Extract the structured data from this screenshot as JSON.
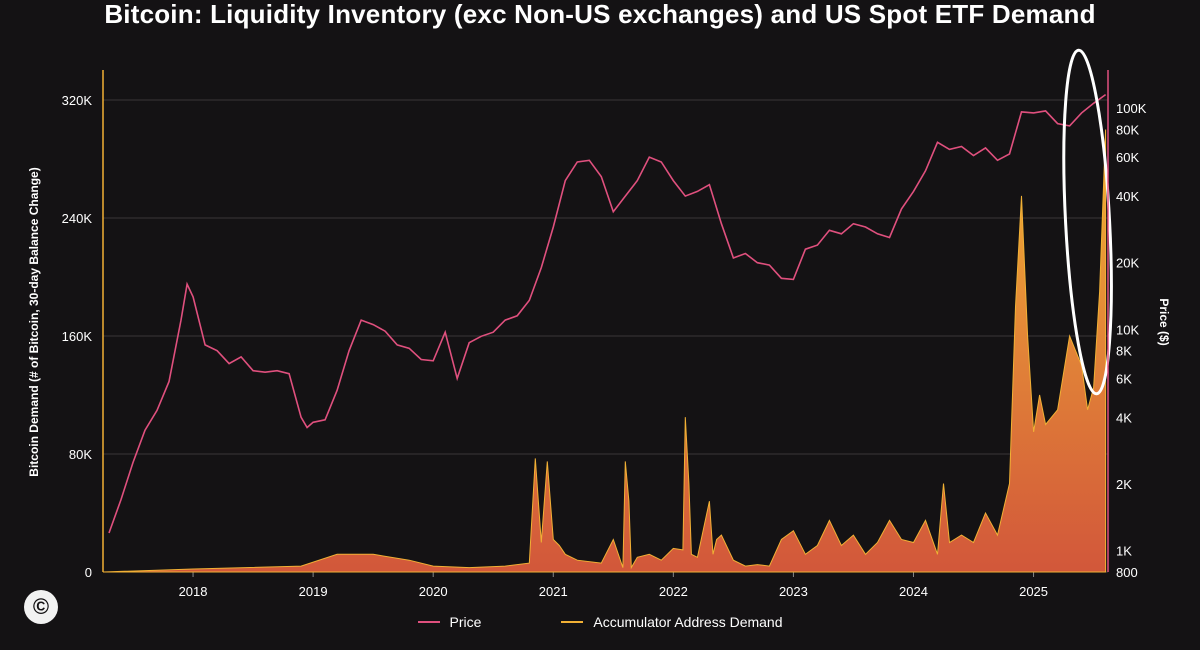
{
  "chart_data": {
    "type": "line",
    "title": "Bitcoin: Liquidity Inventory (exc Non-US exchanges) and US Spot ETF Demand",
    "ylabel_left": "Bitcoin Demand (# of Bitcoin, 30-day Balance Change)",
    "ylabel_right": "Price ($)",
    "left_axis": {
      "min": 0,
      "max": 320000,
      "ticks": [
        0,
        80000,
        160000,
        240000,
        320000
      ],
      "tick_labels": [
        "0",
        "80K",
        "160K",
        "240K",
        "320K"
      ]
    },
    "right_axis": {
      "scale": "log",
      "min": 800,
      "max": 100000,
      "ticks": [
        800,
        1000,
        2000,
        4000,
        6000,
        8000,
        10000,
        20000,
        40000,
        60000,
        80000,
        100000
      ],
      "tick_labels": [
        "800",
        "1K",
        "2K",
        "4K",
        "6K",
        "8K",
        "10K",
        "20K",
        "40K",
        "60K",
        "80K",
        "100K"
      ]
    },
    "x_axis": {
      "min": 2017.25,
      "max": 2025.62,
      "ticks": [
        2018,
        2019,
        2020,
        2021,
        2022,
        2023,
        2024,
        2025
      ],
      "tick_labels": [
        "2018",
        "2019",
        "2020",
        "2021",
        "2022",
        "2023",
        "2024",
        "2025"
      ]
    },
    "grid": "horizontal",
    "legend_position": "bottom-center",
    "series": [
      {
        "name": "Price",
        "axis": "right",
        "color": "#e0507e",
        "x": [
          2017.3,
          2017.4,
          2017.5,
          2017.6,
          2017.7,
          2017.8,
          2017.9,
          2017.95,
          2018.0,
          2018.1,
          2018.2,
          2018.3,
          2018.4,
          2018.5,
          2018.6,
          2018.7,
          2018.8,
          2018.9,
          2018.95,
          2019.0,
          2019.1,
          2019.2,
          2019.3,
          2019.4,
          2019.5,
          2019.6,
          2019.7,
          2019.8,
          2019.9,
          2020.0,
          2020.1,
          2020.2,
          2020.3,
          2020.4,
          2020.5,
          2020.6,
          2020.7,
          2020.8,
          2020.9,
          2021.0,
          2021.1,
          2021.2,
          2021.3,
          2021.4,
          2021.5,
          2021.6,
          2021.7,
          2021.8,
          2021.9,
          2022.0,
          2022.1,
          2022.2,
          2022.3,
          2022.4,
          2022.5,
          2022.6,
          2022.7,
          2022.8,
          2022.9,
          2023.0,
          2023.1,
          2023.2,
          2023.3,
          2023.4,
          2023.5,
          2023.6,
          2023.7,
          2023.8,
          2023.9,
          2024.0,
          2024.1,
          2024.2,
          2024.3,
          2024.4,
          2024.5,
          2024.6,
          2024.7,
          2024.8,
          2024.9,
          2025.0,
          2025.1,
          2025.2,
          2025.3,
          2025.4,
          2025.5,
          2025.6
        ],
        "y": [
          1200,
          1700,
          2500,
          3500,
          4300,
          5800,
          11000,
          16000,
          14000,
          8500,
          8000,
          7000,
          7500,
          6500,
          6400,
          6500,
          6300,
          4000,
          3600,
          3800,
          3900,
          5300,
          8000,
          11000,
          10500,
          9800,
          8500,
          8200,
          7300,
          7200,
          9700,
          6000,
          8700,
          9300,
          9700,
          11000,
          11500,
          13500,
          19000,
          29000,
          47000,
          57000,
          58000,
          49000,
          34000,
          40000,
          47000,
          60000,
          57000,
          47000,
          40000,
          42000,
          45000,
          30000,
          21000,
          22000,
          20000,
          19500,
          17000,
          16800,
          23000,
          24000,
          28000,
          27000,
          30000,
          29000,
          27000,
          26000,
          35000,
          42000,
          52000,
          70000,
          65000,
          67000,
          61000,
          66000,
          58000,
          62000,
          96000,
          95000,
          97000,
          85000,
          83000,
          95000,
          105000,
          115000
        ]
      },
      {
        "name": "Accumulator Address Demand",
        "axis": "left",
        "color": "#f1b035",
        "x": [
          2017.25,
          2018.0,
          2018.9,
          2019.2,
          2019.5,
          2019.8,
          2020.0,
          2020.3,
          2020.6,
          2020.8,
          2020.85,
          2020.9,
          2020.95,
          2021.0,
          2021.05,
          2021.1,
          2021.2,
          2021.4,
          2021.5,
          2021.58,
          2021.6,
          2021.63,
          2021.65,
          2021.7,
          2021.8,
          2021.9,
          2022.0,
          2022.08,
          2022.1,
          2022.13,
          2022.15,
          2022.2,
          2022.3,
          2022.33,
          2022.36,
          2022.4,
          2022.5,
          2022.6,
          2022.7,
          2022.8,
          2022.9,
          2023.0,
          2023.1,
          2023.2,
          2023.3,
          2023.4,
          2023.5,
          2023.6,
          2023.7,
          2023.8,
          2023.9,
          2024.0,
          2024.1,
          2024.2,
          2024.25,
          2024.3,
          2024.4,
          2024.5,
          2024.6,
          2024.7,
          2024.8,
          2024.85,
          2024.9,
          2024.95,
          2025.0,
          2025.05,
          2025.1,
          2025.2,
          2025.3,
          2025.35,
          2025.4,
          2025.45,
          2025.5,
          2025.55,
          2025.6
        ],
        "y": [
          0,
          2000,
          4000,
          12000,
          12000,
          8000,
          4000,
          3000,
          4000,
          6000,
          77000,
          20000,
          75000,
          22000,
          18000,
          12000,
          8000,
          6000,
          22000,
          3000,
          75000,
          48000,
          3000,
          10000,
          12000,
          8000,
          16000,
          15000,
          105000,
          60000,
          12000,
          10000,
          48000,
          12000,
          22000,
          25000,
          8000,
          4000,
          5000,
          4000,
          22000,
          28000,
          12000,
          18000,
          35000,
          18000,
          25000,
          12000,
          20000,
          35000,
          22000,
          20000,
          35000,
          12000,
          60000,
          20000,
          25000,
          20000,
          40000,
          25000,
          60000,
          180000,
          255000,
          160000,
          95000,
          120000,
          100000,
          110000,
          160000,
          150000,
          140000,
          110000,
          125000,
          190000,
          300000
        ]
      }
    ],
    "annotations": [
      {
        "type": "ellipse",
        "label": "",
        "target": "2025 recent peak"
      }
    ]
  },
  "legend": {
    "price_label": "Price",
    "demand_label": "Accumulator Address Demand"
  },
  "logo": {
    "symbol": "©"
  }
}
